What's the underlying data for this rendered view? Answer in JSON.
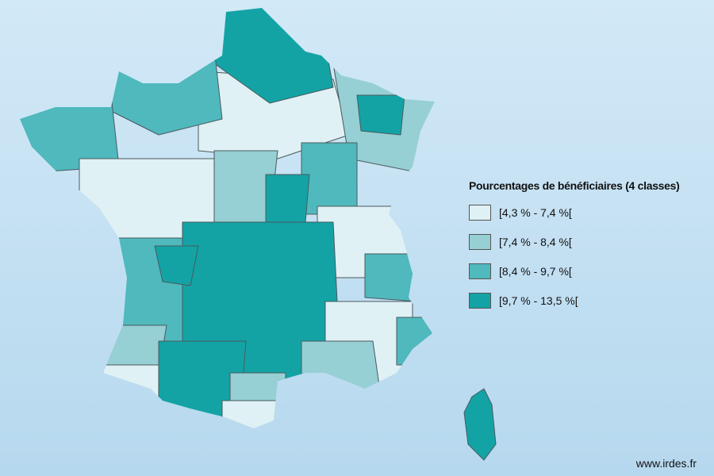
{
  "legend": {
    "title": "Pourcentages de bénéficiaires (4 classes)",
    "items": [
      {
        "label": "[4,3 % - 7,4 %[",
        "color": "#dff1f4"
      },
      {
        "label": "[7,4 % - 8,4 %[",
        "color": "#96cfd4"
      },
      {
        "label": "[8,4 % - 9,7 %[",
        "color": "#4fb9bd"
      },
      {
        "label": "[9,7 % - 13,5 %[",
        "color": "#13a3a5"
      }
    ]
  },
  "footer": {
    "url": "www.irdes.fr"
  }
}
